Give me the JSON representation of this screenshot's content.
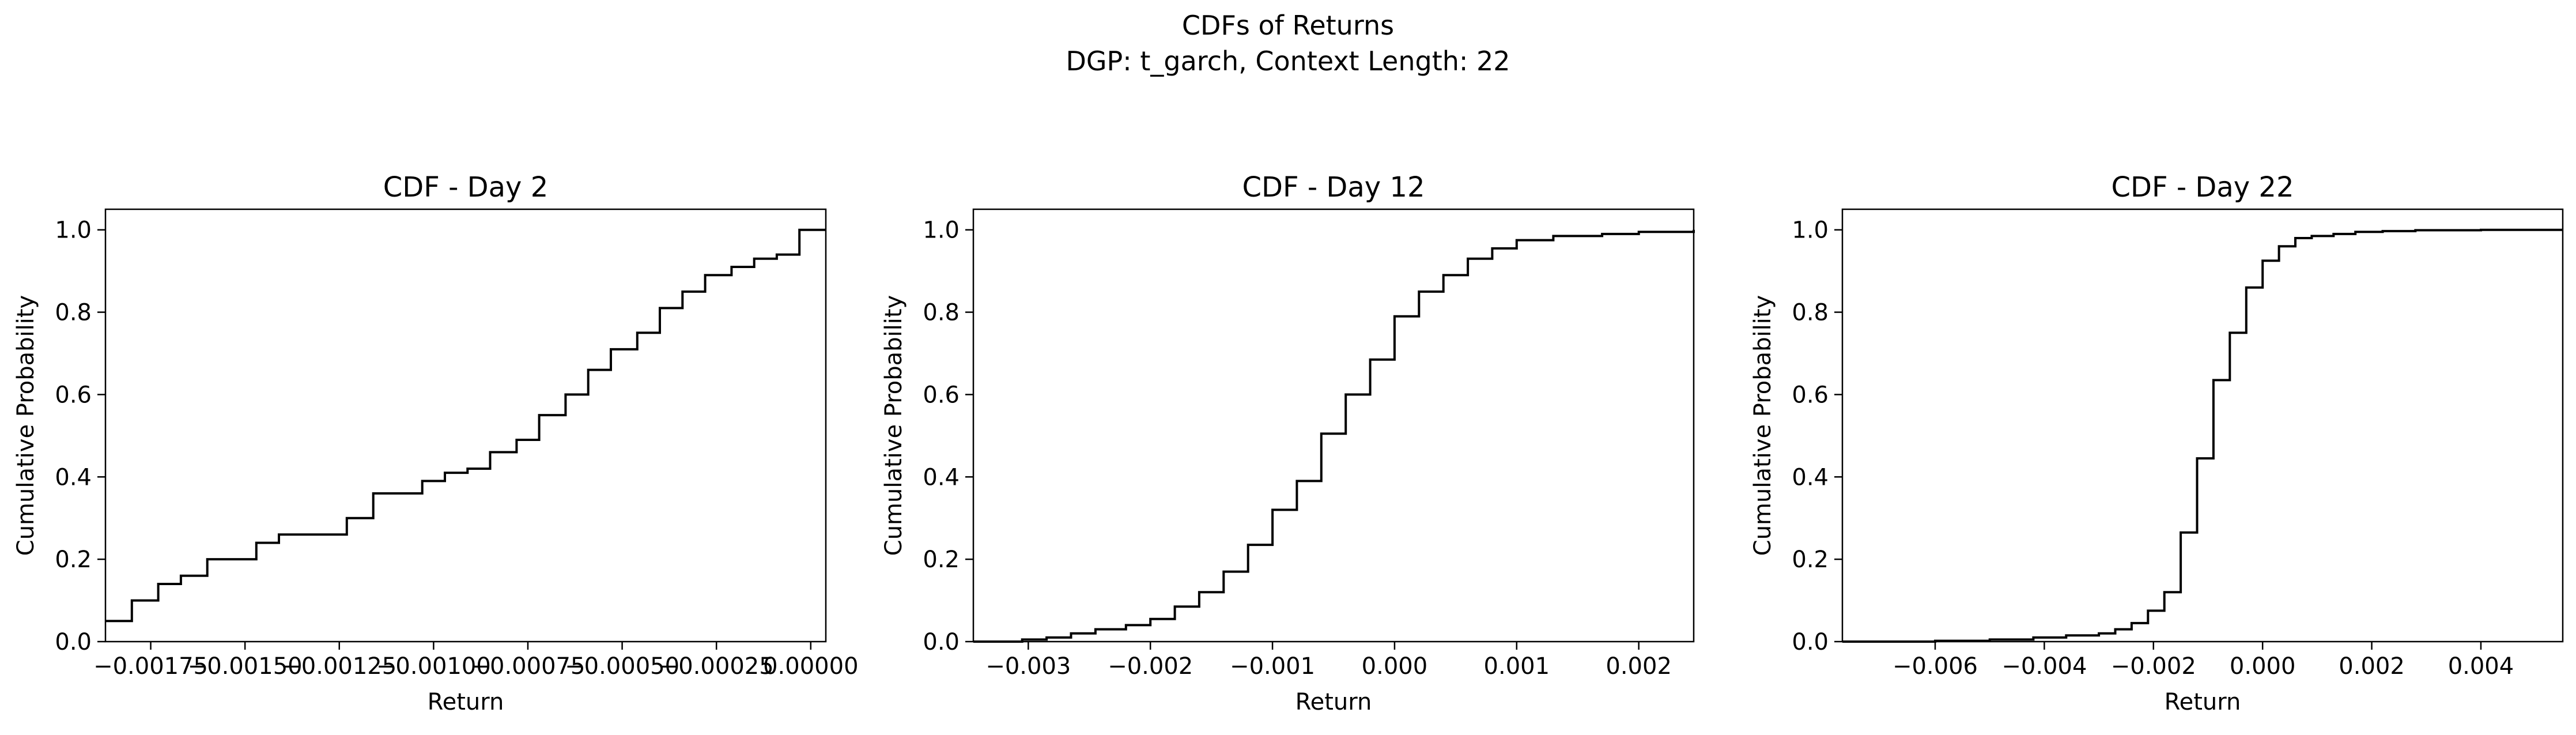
{
  "figure": {
    "suptitle_line1": "CDFs of Returns",
    "suptitle_line2": "DGP: t_garch, Context Length: 22"
  },
  "chart_data": [
    {
      "type": "line",
      "step": "post",
      "title": "CDF - Day 2",
      "xlabel": "Return",
      "ylabel": "Cumulative Probability",
      "xlim": [
        -0.00187,
        4e-05
      ],
      "ylim": [
        0,
        1.05
      ],
      "xticks": [
        -0.00175,
        -0.0015,
        -0.00125,
        -0.001,
        -0.00075,
        -0.0005,
        -0.00025,
        0.0
      ],
      "xtick_labels": [
        "−0.00175",
        "−0.00150",
        "−0.00125",
        "−0.00100",
        "−0.00075",
        "−0.00050",
        "−0.00025",
        "0.00000"
      ],
      "yticks": [
        0.0,
        0.2,
        0.4,
        0.6,
        0.8,
        1.0
      ],
      "ytick_labels": [
        "0.0",
        "0.2",
        "0.4",
        "0.6",
        "0.8",
        "1.0"
      ],
      "grid": false,
      "color": "#000000",
      "x": [
        -0.00187,
        -0.0018,
        -0.00173,
        -0.00167,
        -0.0016,
        -0.00147,
        -0.00141,
        -0.00135,
        -0.00123,
        -0.00116,
        -0.00103,
        -0.00097,
        -0.00091,
        -0.00085,
        -0.00078,
        -0.00072,
        -0.00065,
        -0.00059,
        -0.00053,
        -0.00046,
        -0.0004,
        -0.00034,
        -0.00028,
        -0.00021,
        -0.00015,
        -9e-05,
        -3e-05,
        4e-05
      ],
      "y": [
        0.05,
        0.1,
        0.14,
        0.16,
        0.2,
        0.24,
        0.26,
        0.26,
        0.3,
        0.36,
        0.39,
        0.41,
        0.42,
        0.46,
        0.49,
        0.55,
        0.6,
        0.66,
        0.71,
        0.75,
        0.81,
        0.85,
        0.89,
        0.91,
        0.93,
        0.94,
        1.0,
        1.0
      ]
    },
    {
      "type": "line",
      "step": "post",
      "title": "CDF - Day 12",
      "xlabel": "Return",
      "ylabel": "Cumulative Probability",
      "xlim": [
        -0.00345,
        0.00245
      ],
      "ylim": [
        0,
        1.05
      ],
      "xticks": [
        -0.003,
        -0.002,
        -0.001,
        0.0,
        0.001,
        0.002
      ],
      "xtick_labels": [
        "−0.003",
        "−0.002",
        "−0.001",
        "0.000",
        "0.001",
        "0.002"
      ],
      "yticks": [
        0.0,
        0.2,
        0.4,
        0.6,
        0.8,
        1.0
      ],
      "ytick_labels": [
        "0.0",
        "0.2",
        "0.4",
        "0.6",
        "0.8",
        "1.0"
      ],
      "grid": false,
      "color": "#000000",
      "x": [
        -0.00345,
        -0.00305,
        -0.00285,
        -0.00265,
        -0.00245,
        -0.0022,
        -0.002,
        -0.0018,
        -0.0016,
        -0.0014,
        -0.0012,
        -0.001,
        -0.0008,
        -0.0006,
        -0.0004,
        -0.0002,
        0.0,
        0.0002,
        0.0004,
        0.0006,
        0.0008,
        0.001,
        0.0013,
        0.0017,
        0.002,
        0.00245
      ],
      "y": [
        0.0,
        0.005,
        0.01,
        0.02,
        0.03,
        0.04,
        0.055,
        0.085,
        0.12,
        0.17,
        0.235,
        0.32,
        0.39,
        0.505,
        0.6,
        0.685,
        0.79,
        0.85,
        0.89,
        0.93,
        0.955,
        0.975,
        0.985,
        0.99,
        0.995,
        1.0
      ]
    },
    {
      "type": "line",
      "step": "post",
      "title": "CDF - Day 22",
      "xlabel": "Return",
      "ylabel": "Cumulative Probability",
      "xlim": [
        -0.0077,
        0.0055
      ],
      "ylim": [
        0,
        1.05
      ],
      "xticks": [
        -0.006,
        -0.004,
        -0.002,
        0.0,
        0.002,
        0.004
      ],
      "xtick_labels": [
        "−0.006",
        "−0.004",
        "−0.002",
        "0.000",
        "0.002",
        "0.004"
      ],
      "yticks": [
        0.0,
        0.2,
        0.4,
        0.6,
        0.8,
        1.0
      ],
      "ytick_labels": [
        "0.0",
        "0.2",
        "0.4",
        "0.6",
        "0.8",
        "1.0"
      ],
      "grid": false,
      "color": "#000000",
      "x": [
        -0.0077,
        -0.006,
        -0.005,
        -0.0042,
        -0.0036,
        -0.003,
        -0.0027,
        -0.0024,
        -0.0021,
        -0.0018,
        -0.0015,
        -0.0012,
        -0.0009,
        -0.0006,
        -0.0003,
        0.0,
        0.0003,
        0.0006,
        0.0009,
        0.0013,
        0.0017,
        0.0022,
        0.0028,
        0.004,
        0.0055
      ],
      "y": [
        0.0,
        0.002,
        0.005,
        0.01,
        0.015,
        0.02,
        0.03,
        0.045,
        0.075,
        0.12,
        0.265,
        0.445,
        0.635,
        0.75,
        0.86,
        0.925,
        0.96,
        0.98,
        0.985,
        0.99,
        0.995,
        0.997,
        0.999,
        1.0,
        1.0
      ]
    }
  ]
}
